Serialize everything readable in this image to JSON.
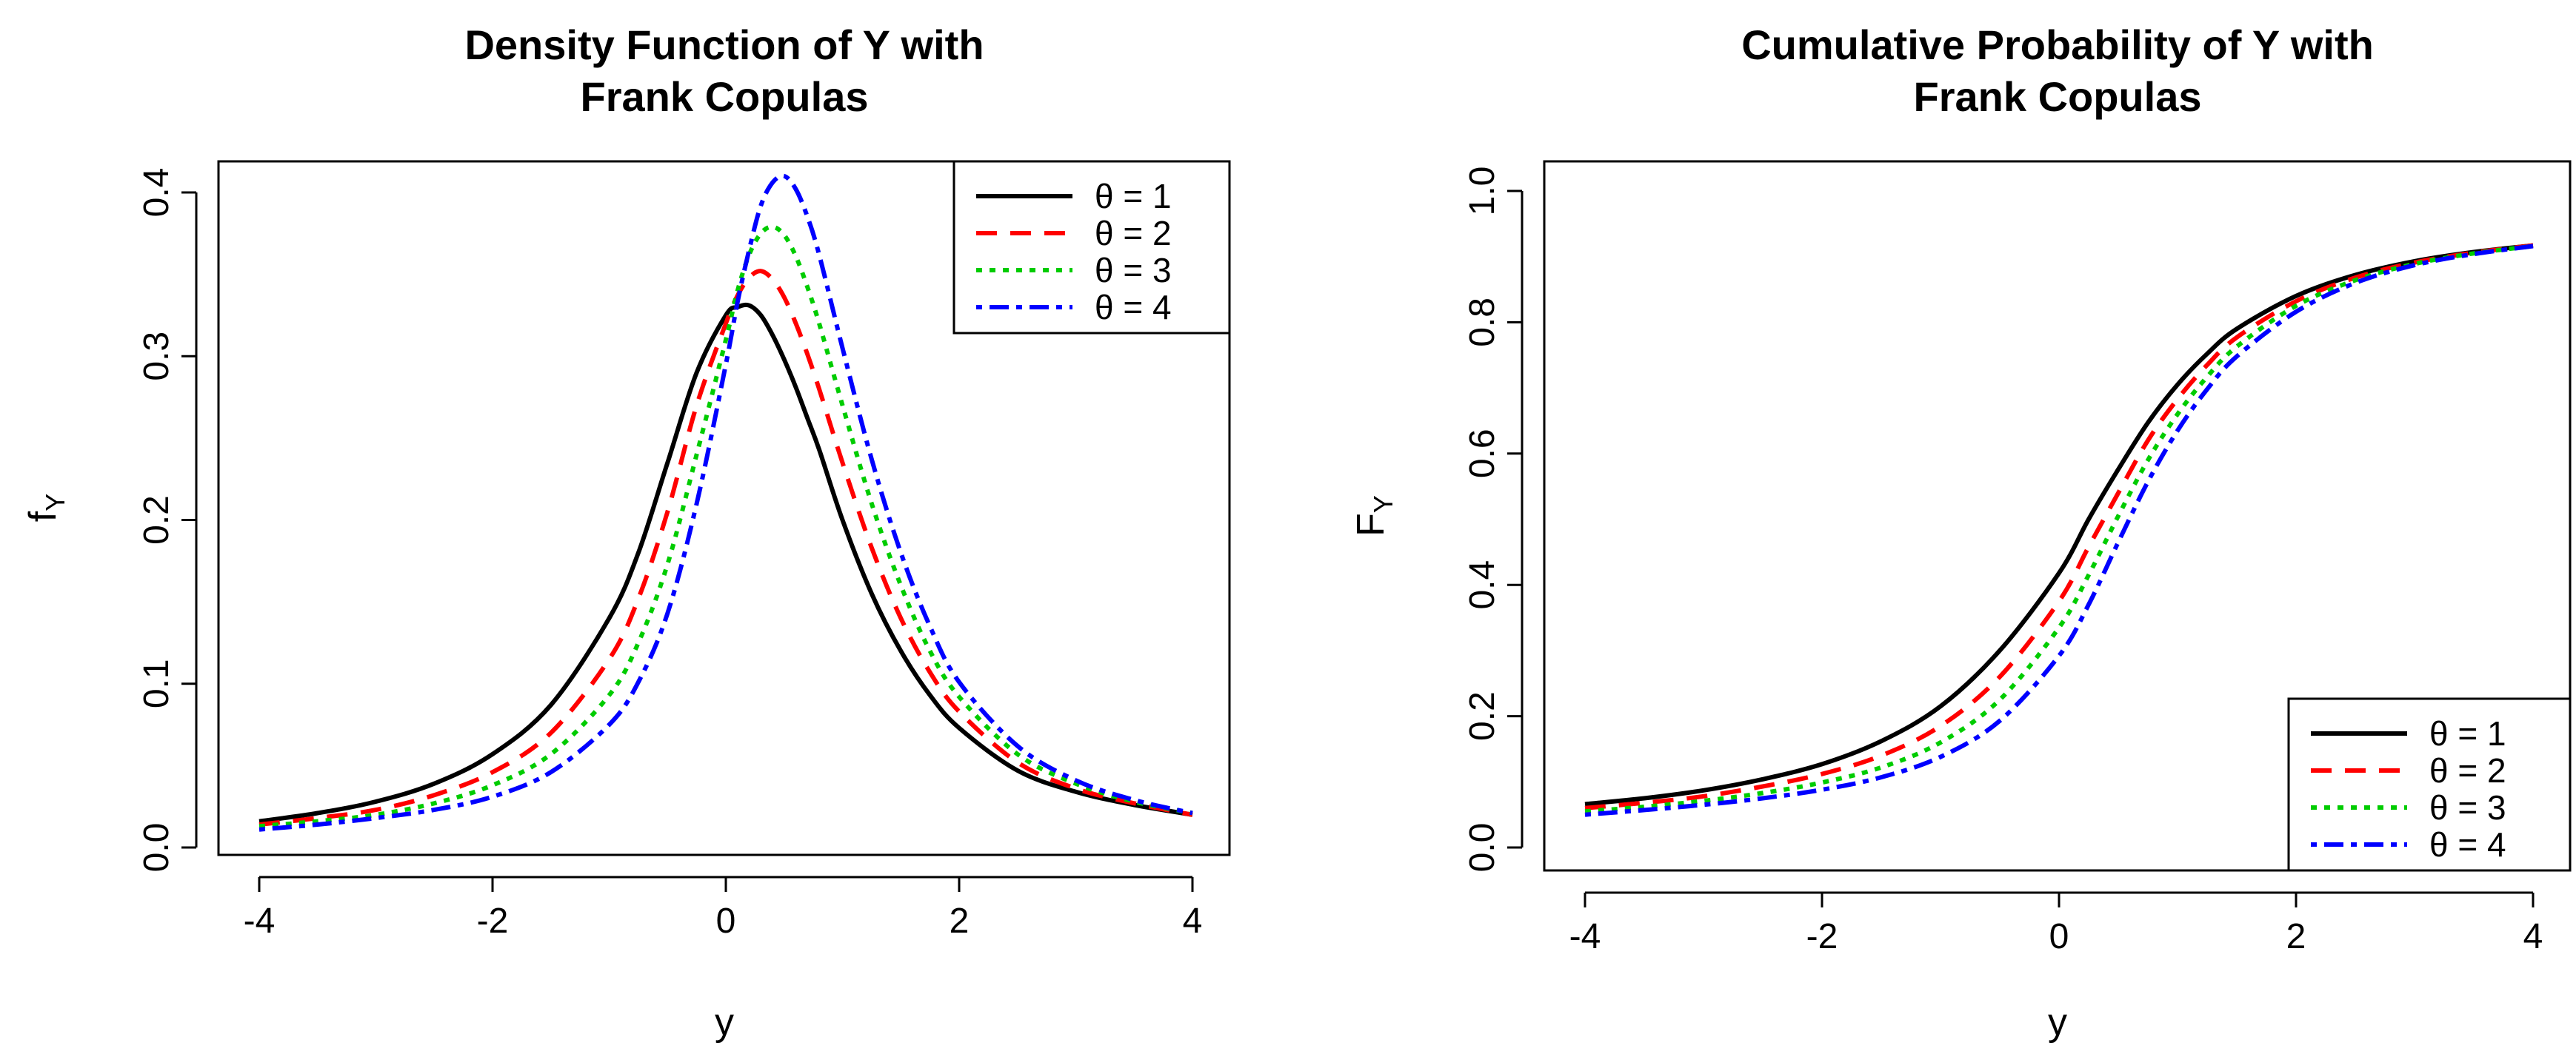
{
  "chart_data": [
    {
      "type": "line",
      "title_lines": [
        "Density Function of Y with",
        "Frank Copulas"
      ],
      "xlabel": "y",
      "ylabel_main": "f",
      "ylabel_sub": "Y",
      "xlim": [
        -4,
        4
      ],
      "ylim": [
        0,
        0.42
      ],
      "xticks": [
        -4,
        -2,
        0,
        2,
        4
      ],
      "xtick_labels": [
        "-4",
        "-2",
        "0",
        "2",
        "4"
      ],
      "yticks": [
        0.0,
        0.1,
        0.2,
        0.3,
        0.4
      ],
      "ytick_labels": [
        "0.0",
        "0.1",
        "0.2",
        "0.3",
        "0.4"
      ],
      "legend_position": "top-right",
      "x": [
        -4,
        -3.5,
        -3,
        -2.5,
        -2,
        -1.5,
        -1,
        -0.75,
        -0.5,
        -0.25,
        0,
        0.1,
        0.2,
        0.3,
        0.4,
        0.5,
        0.6,
        0.7,
        0.8,
        1,
        1.25,
        1.5,
        1.75,
        2,
        2.5,
        3,
        3.5,
        4
      ],
      "series": [
        {
          "name": "θ = 1",
          "color": "#000000",
          "dash": "solid",
          "values": [
            0.016,
            0.021,
            0.028,
            0.039,
            0.057,
            0.087,
            0.14,
            0.18,
            0.235,
            0.29,
            0.325,
            0.33,
            0.331,
            0.325,
            0.313,
            0.298,
            0.281,
            0.262,
            0.243,
            0.2,
            0.155,
            0.12,
            0.093,
            0.073,
            0.047,
            0.034,
            0.026,
            0.02
          ]
        },
        {
          "name": "θ = 2",
          "color": "#ff0000",
          "dash": "dashed",
          "values": [
            0.014,
            0.018,
            0.023,
            0.032,
            0.046,
            0.07,
            0.115,
            0.152,
            0.205,
            0.27,
            0.32,
            0.337,
            0.348,
            0.352,
            0.347,
            0.336,
            0.32,
            0.301,
            0.28,
            0.235,
            0.183,
            0.14,
            0.107,
            0.083,
            0.052,
            0.036,
            0.027,
            0.02
          ]
        },
        {
          "name": "θ = 3",
          "color": "#00cc00",
          "dash": "dotted",
          "values": [
            0.013,
            0.016,
            0.02,
            0.027,
            0.038,
            0.057,
            0.093,
            0.125,
            0.173,
            0.24,
            0.31,
            0.34,
            0.362,
            0.375,
            0.379,
            0.374,
            0.361,
            0.342,
            0.32,
            0.27,
            0.21,
            0.16,
            0.12,
            0.092,
            0.057,
            0.039,
            0.028,
            0.021
          ]
        },
        {
          "name": "θ = 4",
          "color": "#0000ff",
          "dash": "dotdash",
          "values": [
            0.011,
            0.014,
            0.018,
            0.023,
            0.031,
            0.046,
            0.075,
            0.101,
            0.143,
            0.21,
            0.295,
            0.333,
            0.365,
            0.392,
            0.406,
            0.41,
            0.402,
            0.385,
            0.362,
            0.305,
            0.237,
            0.18,
            0.135,
            0.101,
            0.062,
            0.041,
            0.029,
            0.021
          ]
        }
      ]
    },
    {
      "type": "line",
      "title_lines": [
        "Cumulative Probability of Y with",
        "Frank Copulas"
      ],
      "xlabel": "y",
      "ylabel_main": "F",
      "ylabel_sub": "Y",
      "xlim": [
        -4,
        4
      ],
      "ylim": [
        0,
        1.0
      ],
      "xticks": [
        -4,
        -2,
        0,
        2,
        4
      ],
      "xtick_labels": [
        "-4",
        "-2",
        "0",
        "2",
        "4"
      ],
      "yticks": [
        0.0,
        0.2,
        0.4,
        0.6,
        0.8,
        1.0
      ],
      "ytick_labels": [
        "0.0",
        "0.2",
        "0.4",
        "0.6",
        "0.8",
        "1.0"
      ],
      "legend_position": "bottom-right",
      "x": [
        -4,
        -3.5,
        -3,
        -2.5,
        -2,
        -1.5,
        -1,
        -0.5,
        0,
        0.25,
        0.5,
        0.75,
        1,
        1.25,
        1.5,
        2,
        2.5,
        3,
        3.5,
        4
      ],
      "series": [
        {
          "name": "θ = 1",
          "color": "#000000",
          "dash": "solid",
          "values": [
            0.066,
            0.075,
            0.087,
            0.104,
            0.127,
            0.162,
            0.215,
            0.3,
            0.418,
            0.5,
            0.576,
            0.647,
            0.705,
            0.752,
            0.79,
            0.84,
            0.872,
            0.893,
            0.907,
            0.917
          ]
        },
        {
          "name": "θ = 2",
          "color": "#ff0000",
          "dash": "dashed",
          "values": [
            0.06,
            0.068,
            0.078,
            0.093,
            0.112,
            0.14,
            0.185,
            0.26,
            0.375,
            0.458,
            0.54,
            0.62,
            0.683,
            0.735,
            0.777,
            0.832,
            0.868,
            0.891,
            0.906,
            0.917
          ]
        },
        {
          "name": "θ = 3",
          "color": "#00cc00",
          "dash": "dotted",
          "values": [
            0.055,
            0.062,
            0.071,
            0.083,
            0.099,
            0.122,
            0.16,
            0.225,
            0.335,
            0.415,
            0.505,
            0.59,
            0.66,
            0.717,
            0.763,
            0.825,
            0.864,
            0.889,
            0.905,
            0.916
          ]
        },
        {
          "name": "θ = 4",
          "color": "#0000ff",
          "dash": "dotdash",
          "values": [
            0.05,
            0.057,
            0.065,
            0.075,
            0.088,
            0.107,
            0.138,
            0.193,
            0.292,
            0.37,
            0.465,
            0.557,
            0.635,
            0.698,
            0.748,
            0.816,
            0.86,
            0.887,
            0.904,
            0.916
          ]
        }
      ]
    }
  ]
}
